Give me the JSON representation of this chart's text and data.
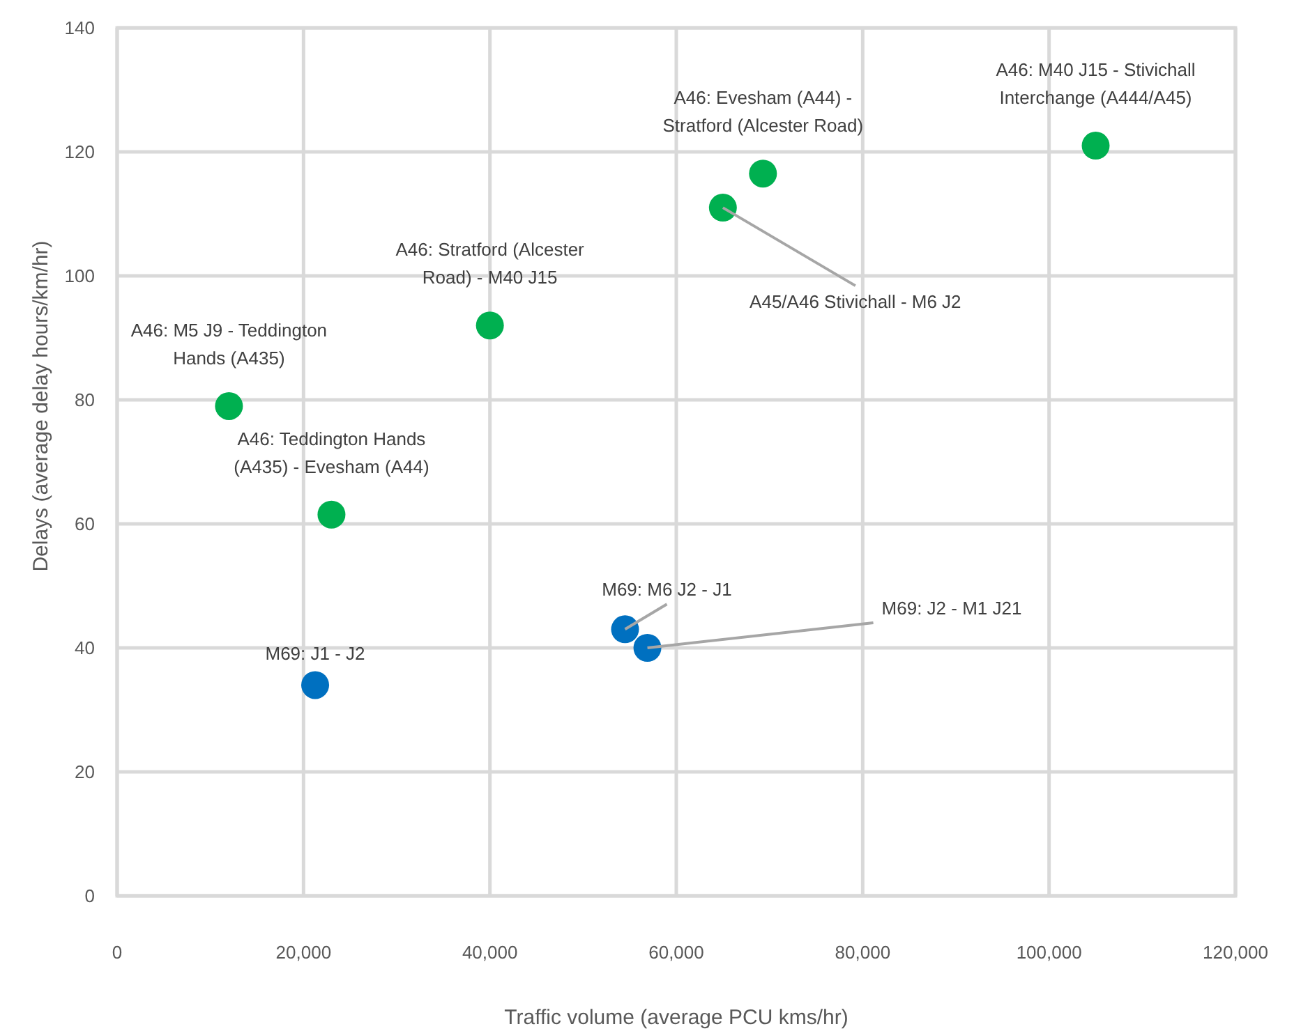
{
  "chart_data": {
    "type": "scatter",
    "xlabel": "Traffic volume (average PCU kms/hr)",
    "ylabel": "Delays (average delay hours/km/hr)",
    "xlim": [
      0,
      120000
    ],
    "xticks": [
      {
        "value": 0,
        "label": "0"
      },
      {
        "value": 20000,
        "label": "20,000"
      },
      {
        "value": 40000,
        "label": "40,000"
      },
      {
        "value": 60000,
        "label": "60,000"
      },
      {
        "value": 80000,
        "label": "80,000"
      },
      {
        "value": 100000,
        "label": "100,000"
      },
      {
        "value": 120000,
        "label": "120,000"
      }
    ],
    "ylim": [
      0,
      140
    ],
    "yticks": [
      0,
      20,
      40,
      60,
      80,
      100,
      120,
      140
    ],
    "grid": true,
    "marker": "circle",
    "series": [
      {
        "color": "#00b050",
        "x": [
          12000,
          23000,
          40000,
          65000,
          69300,
          105000
        ],
        "values": [
          79,
          61.5,
          92,
          111,
          116.5,
          121
        ],
        "value_labels": [
          "A46: M5 J9 - Teddington Hands (A435)",
          "A46: Teddington Hands (A435) - Evesham (A44)",
          "A46: Stratford (Alcester Road) - M40 J15",
          "A45/A46 Stivichall - M6 J2",
          "A46: Evesham (A44) - Stratford (Alcester Road)",
          "A46: M40 J15 - Stivichall Interchange (A444/A45)"
        ]
      },
      {
        "color": "#0070c0",
        "x": [
          21250,
          54500,
          56900
        ],
        "values": [
          34,
          43,
          40
        ],
        "value_labels": [
          "M69: J1 - J2",
          "M69: M6 J2 - J1",
          "M69: J2 - M1 J21"
        ]
      }
    ]
  }
}
